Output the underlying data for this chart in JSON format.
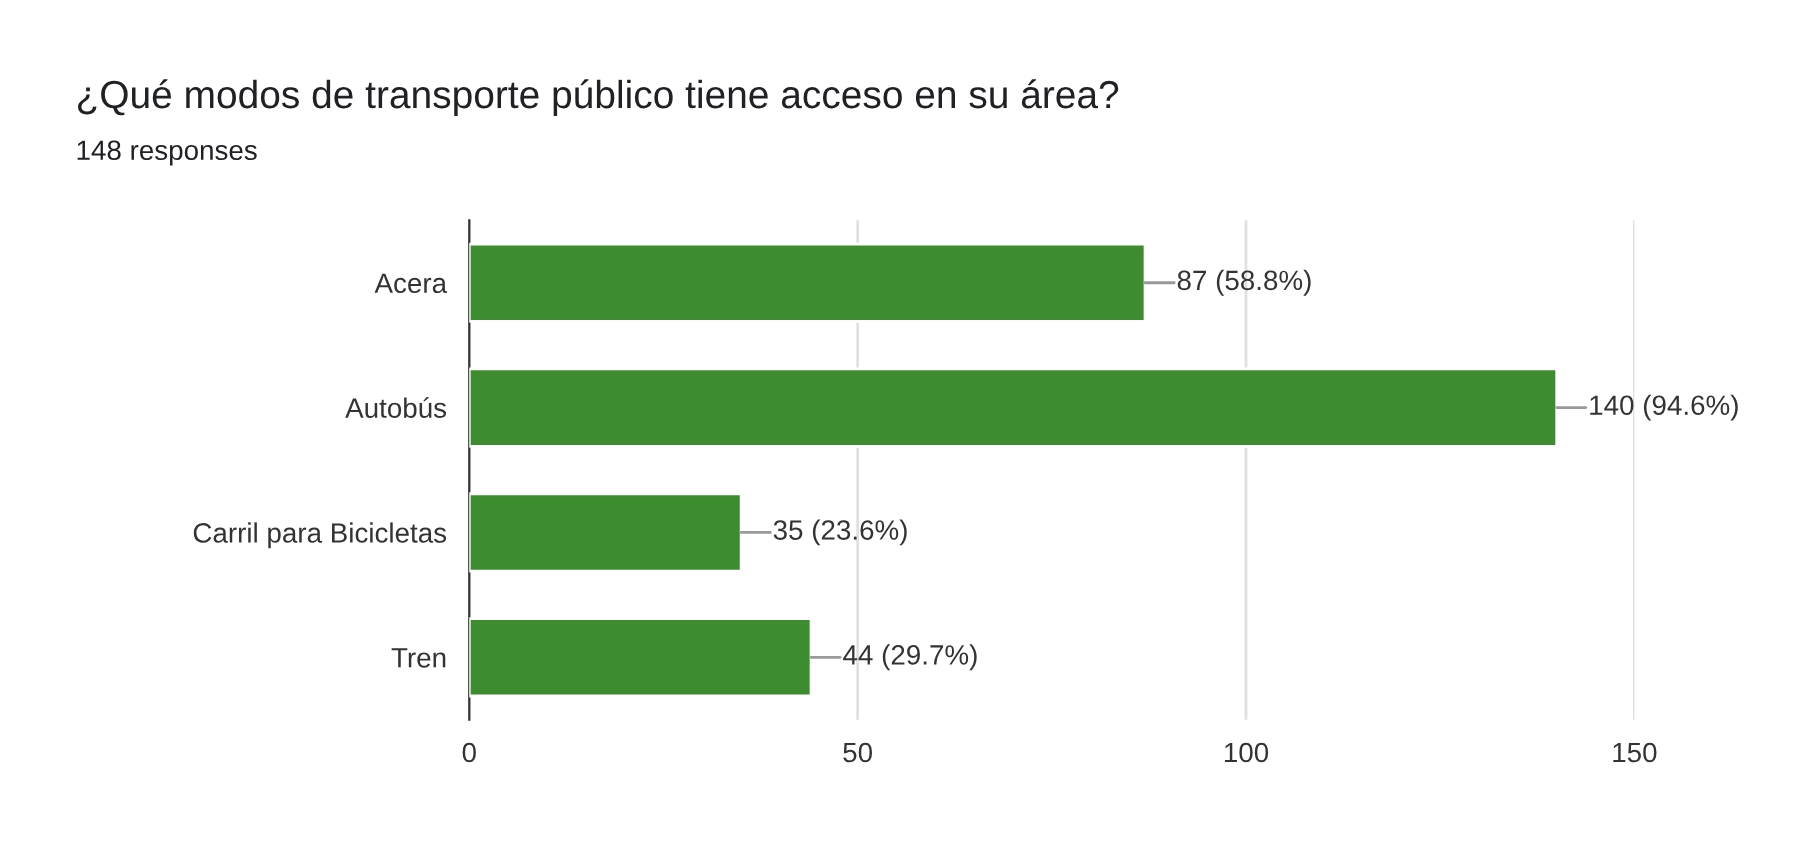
{
  "chart_data": {
    "type": "bar",
    "orientation": "horizontal",
    "title": "¿Qué modos de transporte público tiene acceso en su área?",
    "subtitle": "148 responses",
    "categories": [
      "Acera",
      "Autobús",
      "Carril para Bicicletas",
      "Tren"
    ],
    "values": [
      87,
      140,
      35,
      44
    ],
    "value_labels": [
      "87 (58.8%)",
      "140 (94.6%)",
      "35 (23.6%)",
      "44 (29.7%)"
    ],
    "color": "#3d8c2f",
    "xlim": [
      0,
      150
    ],
    "xticks": [
      0,
      50,
      100,
      150
    ],
    "grid": "x"
  }
}
